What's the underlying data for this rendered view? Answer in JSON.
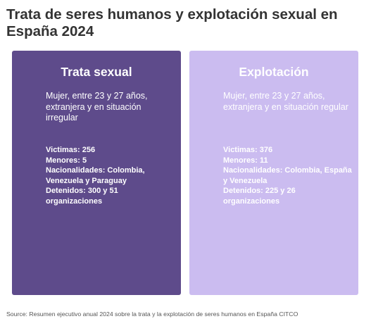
{
  "title": "Trata de seres humanos y explotación sexual en España 2024",
  "colors": {
    "card_left": "#5e4b8b",
    "card_right": "#cbbcf0",
    "text_on_card": "#ffffff"
  },
  "cards": [
    {
      "heading": "Trata sexual",
      "description": "Mujer, entre 23 y 27 años, extranjera y en situación irregular",
      "stats": [
        "Victimas: 256",
        "Menores: 5",
        "Nacionalidades: Colombia, Venezuela y Paraguay",
        "Detenidos: 300 y 51 organizaciones"
      ]
    },
    {
      "heading": "Explotación",
      "description": "Mujer, entre 23 y 27 años, extranjera y en situación regular",
      "stats": [
        "Victimas: 376",
        "Menores: 11",
        "Nacionalidades: Colombia, España y Venezuela",
        "Detenidos: 225 y 26 organizaciones"
      ]
    }
  ],
  "source": "Source: Resumen ejecutivo anual 2024 sobre la trata y la explotación de seres humanos en España CITCO"
}
